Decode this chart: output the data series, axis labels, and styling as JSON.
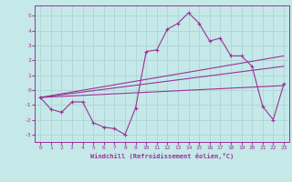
{
  "xlabel": "Windchill (Refroidissement éolien,°C)",
  "background_color": "#c5e8e8",
  "grid_color": "#aed4d4",
  "line_color": "#993399",
  "spine_color": "#993399",
  "xlim": [
    -0.5,
    23.5
  ],
  "ylim": [
    -3.5,
    5.7
  ],
  "xticks": [
    0,
    1,
    2,
    3,
    4,
    5,
    6,
    7,
    8,
    9,
    10,
    11,
    12,
    13,
    14,
    15,
    16,
    17,
    18,
    19,
    20,
    21,
    22,
    23
  ],
  "yticks": [
    -3,
    -2,
    -1,
    0,
    1,
    2,
    3,
    4,
    5
  ],
  "line1_x": [
    0,
    1,
    2,
    3,
    4,
    5,
    6,
    7,
    8,
    9,
    10,
    11,
    12,
    13,
    14,
    15,
    16,
    17,
    18,
    19,
    20,
    21,
    22,
    23
  ],
  "line1_y": [
    -0.5,
    -1.3,
    -1.5,
    -0.8,
    -0.8,
    -2.2,
    -2.5,
    -2.6,
    -3.0,
    -1.2,
    2.6,
    2.7,
    4.1,
    4.5,
    5.2,
    4.5,
    3.3,
    3.5,
    2.3,
    2.3,
    1.6,
    -1.1,
    -2.0,
    0.4
  ],
  "line2_x": [
    0,
    23
  ],
  "line2_y": [
    -0.5,
    0.3
  ],
  "line3_x": [
    0,
    23
  ],
  "line3_y": [
    -0.5,
    1.6
  ],
  "line4_x": [
    0,
    23
  ],
  "line4_y": [
    -0.5,
    2.3
  ]
}
